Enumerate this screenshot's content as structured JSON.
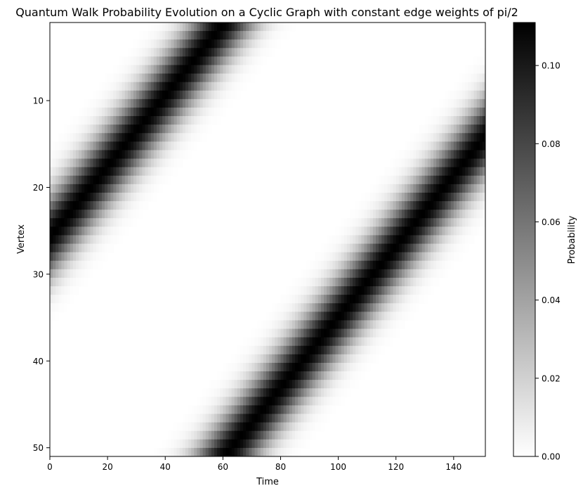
{
  "chart_data": {
    "type": "heatmap",
    "title": "Quantum Walk Probability Evolution on a Cyclic Graph with constant edge weights of pi/2",
    "xlabel": "Time",
    "ylabel": "Vertex",
    "colorbar_label": "Probability",
    "colormap": "Greys (white = 0, black = max)",
    "xlim": [
      0,
      151
    ],
    "ylim": [
      51,
      1
    ],
    "x_ticks": [
      0,
      20,
      40,
      60,
      80,
      100,
      120,
      140
    ],
    "y_ticks": [
      10,
      20,
      30,
      40,
      50
    ],
    "value_range": [
      0.0,
      0.111
    ],
    "colorbar_ticks": [
      "0.00",
      "0.02",
      "0.04",
      "0.06",
      "0.08",
      "0.10"
    ],
    "n_vertices": 51,
    "n_timesteps": 151,
    "wave_fronts": [
      {
        "vertex_at_time_0": 25.5,
        "vertex_per_time": -0.416,
        "peak_probability": 0.111,
        "gaussian_sigma_vertices": 3.2
      },
      {
        "vertex_at_time_0": 76.5,
        "vertex_per_time": -0.416,
        "peak_probability": 0.111,
        "gaussian_sigma_vertices": 3.2
      }
    ]
  }
}
